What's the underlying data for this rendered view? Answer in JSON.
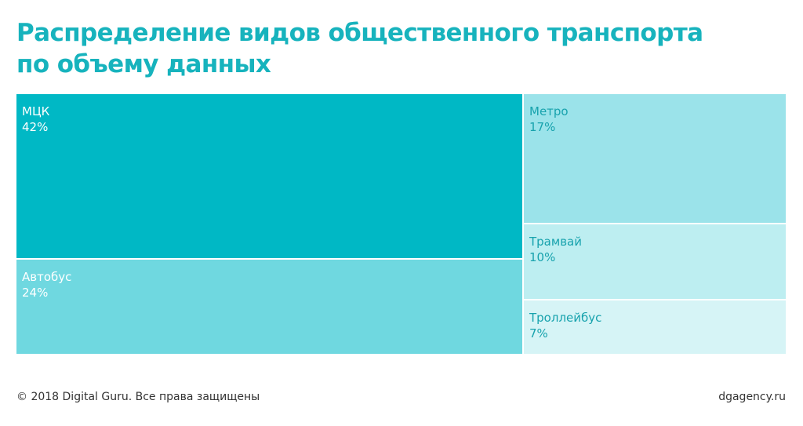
{
  "title": {
    "line1": "Распределение видов общественного транспорта",
    "line2": "по объему данных"
  },
  "chart_data": {
    "type": "treemap",
    "items": [
      {
        "label": "МЦК",
        "value": 42,
        "value_label": "42%",
        "color": "#00b8c5",
        "text_color": "#ffffff"
      },
      {
        "label": "Автобус",
        "value": 24,
        "value_label": "24%",
        "color": "#6fd8e0",
        "text_color": "#ffffff"
      },
      {
        "label": "Метро",
        "value": 17,
        "value_label": "17%",
        "color": "#9be3ea",
        "text_color": "#17a2ad"
      },
      {
        "label": "Трамвай",
        "value": 10,
        "value_label": "10%",
        "color": "#bdeef1",
        "text_color": "#17a2ad"
      },
      {
        "label": "Троллейбус",
        "value": 7,
        "value_label": "7%",
        "color": "#d6f4f6",
        "text_color": "#17a2ad"
      }
    ]
  },
  "footer": {
    "copyright": "© 2018 Digital Guru. Все права защищены",
    "site": "dgagency.ru"
  }
}
